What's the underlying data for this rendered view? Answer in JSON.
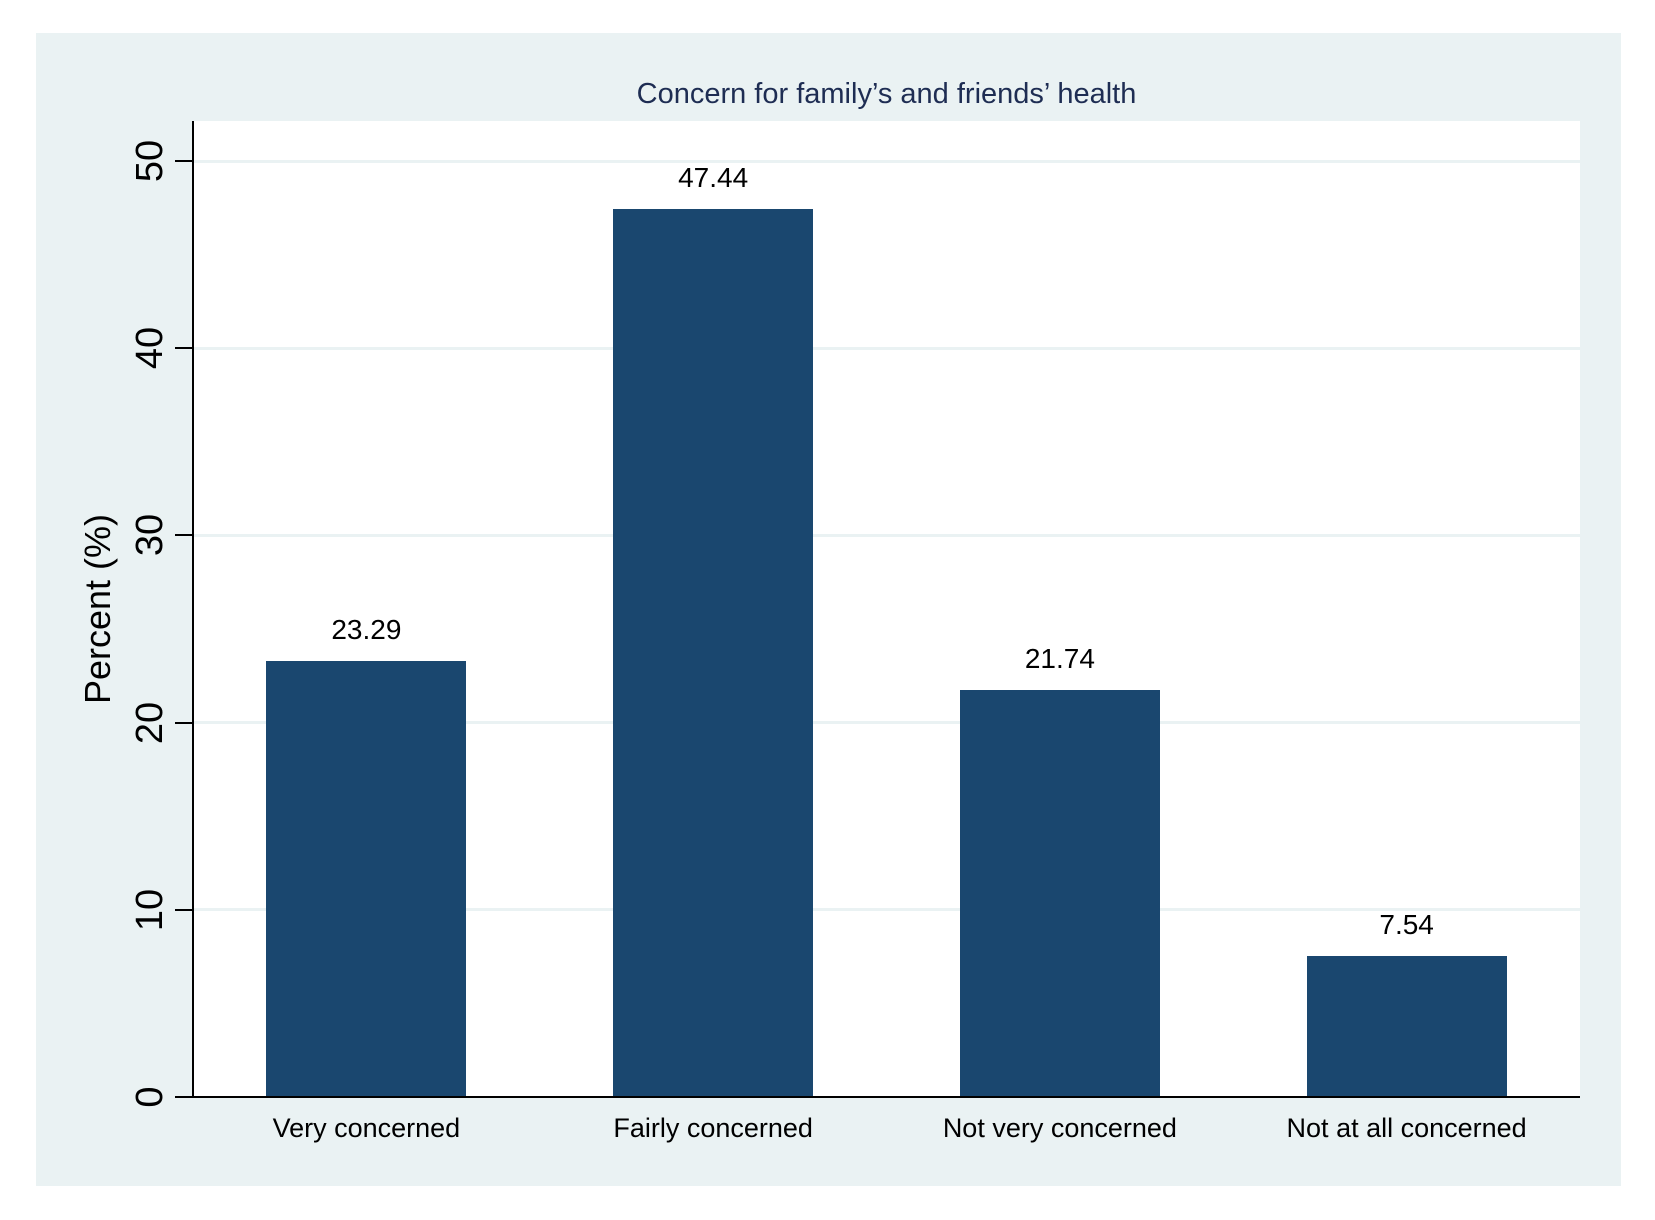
{
  "chart_data": {
    "type": "bar",
    "title": "Concern for family’s and friends’ health",
    "categories": [
      "Very concerned",
      "Fairly concerned",
      "Not very concerned",
      "Not at all concerned"
    ],
    "values": [
      23.29,
      47.44,
      21.74,
      7.54
    ],
    "value_labels": [
      "23.29",
      "47.44",
      "21.74",
      "7.54"
    ],
    "xlabel": "",
    "ylabel": "Percent (%)",
    "ytick_labels": [
      "0",
      "10",
      "20",
      "30",
      "40",
      "50"
    ],
    "yticks": [
      0,
      10,
      20,
      30,
      40,
      50
    ],
    "ylim": [
      0,
      52.1
    ],
    "grid": true,
    "legend": "none",
    "colors": {
      "bar_fill": "#1a476f",
      "title_text": "#1e2d53",
      "panel_background": "#eaf2f3",
      "plot_background": "#ffffff",
      "gridline": "#eaf2f3",
      "axis_line": "#000000",
      "tick_text": "#000000"
    }
  }
}
